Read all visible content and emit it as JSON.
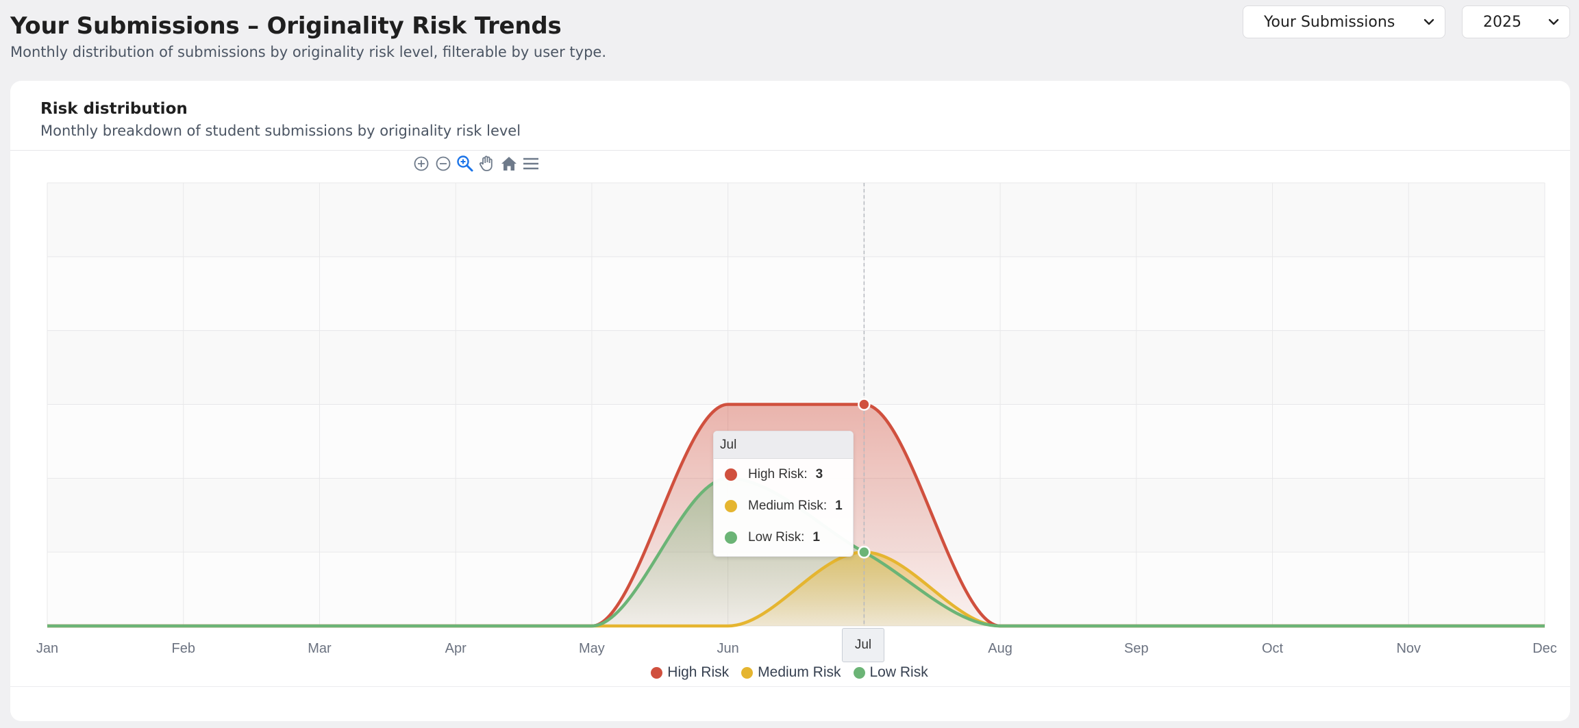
{
  "page": {
    "title": "Your Submissions – Originality Risk Trends",
    "subtitle": "Monthly distribution of submissions by originality risk level, filterable by user type."
  },
  "filters": {
    "user_type": "Your Submissions",
    "year": "2025"
  },
  "card": {
    "title": "Risk distribution",
    "subtitle": "Monthly breakdown of student submissions by originality risk level"
  },
  "toolbar": [
    "zoom-in-icon",
    "zoom-out-icon",
    "selection-zoom-icon",
    "pan-hand-icon",
    "reset-home-icon",
    "menu-icon"
  ],
  "chart_data": {
    "type": "area",
    "categories": [
      "Jan",
      "Feb",
      "Mar",
      "Apr",
      "May",
      "Jun",
      "Jul",
      "Aug",
      "Sep",
      "Oct",
      "Nov",
      "Dec"
    ],
    "series": [
      {
        "name": "High Risk",
        "color": "#d0503e",
        "values": [
          0,
          0,
          0,
          0,
          0,
          3,
          3,
          0,
          0,
          0,
          0,
          0
        ]
      },
      {
        "name": "Medium Risk",
        "color": "#e5b530",
        "values": [
          0,
          0,
          0,
          0,
          0,
          0,
          1,
          0,
          0,
          0,
          0,
          0
        ]
      },
      {
        "name": "Low Risk",
        "color": "#6bb476",
        "values": [
          0,
          0,
          0,
          0,
          0,
          2,
          1,
          0,
          0,
          0,
          0,
          0
        ]
      }
    ],
    "ylim": [
      0,
      6
    ],
    "grid": true,
    "legend": "bottom-center",
    "tooltip": {
      "category": "Jul",
      "rows": [
        {
          "name": "High Risk",
          "value": "3",
          "color": "#d0503e"
        },
        {
          "name": "Medium Risk",
          "value": "1",
          "color": "#e5b530"
        },
        {
          "name": "Low Risk",
          "value": "1",
          "color": "#6bb476"
        }
      ]
    },
    "crosshair_label": "Jul"
  }
}
